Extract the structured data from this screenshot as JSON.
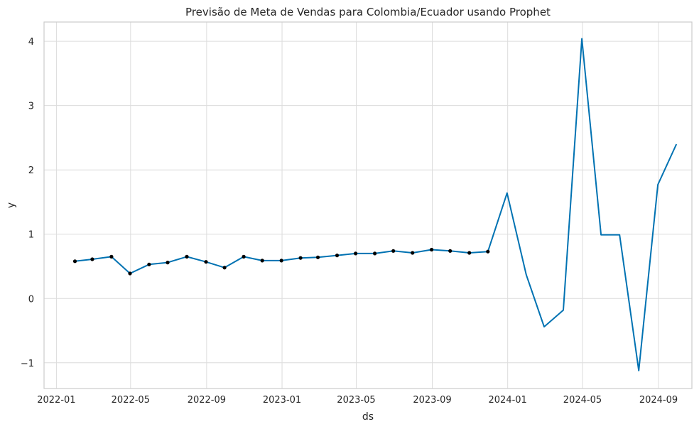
{
  "chart_data": {
    "type": "line",
    "title": "Previsão de Meta de Vendas para Colombia/Ecuador usando Prophet",
    "xlabel": "ds",
    "ylabel": "y",
    "xlim": [
      "2021-12-12",
      "2024-10-25"
    ],
    "ylim": [
      -1.4,
      4.3
    ],
    "x_ticks": [
      {
        "date": "2022-01-01",
        "label": "2022-01"
      },
      {
        "date": "2022-05-01",
        "label": "2022-05"
      },
      {
        "date": "2022-09-01",
        "label": "2022-09"
      },
      {
        "date": "2023-01-01",
        "label": "2023-01"
      },
      {
        "date": "2023-05-01",
        "label": "2023-05"
      },
      {
        "date": "2023-09-01",
        "label": "2023-09"
      },
      {
        "date": "2024-01-01",
        "label": "2024-01"
      },
      {
        "date": "2024-05-01",
        "label": "2024-05"
      },
      {
        "date": "2024-09-01",
        "label": "2024-09"
      }
    ],
    "y_ticks": [
      {
        "value": -1,
        "label": "−1"
      },
      {
        "value": 0,
        "label": "0"
      },
      {
        "value": 1,
        "label": "1"
      },
      {
        "value": 2,
        "label": "2"
      },
      {
        "value": 3,
        "label": "3"
      },
      {
        "value": 4,
        "label": "4"
      }
    ],
    "grid": true,
    "colors": {
      "forecast": "#0072b2",
      "observed": "#000000"
    },
    "series": [
      {
        "kind": "forecast",
        "x": [
          "2022-01-31",
          "2022-02-28",
          "2022-03-31",
          "2022-04-30",
          "2022-05-31",
          "2022-06-30",
          "2022-07-31",
          "2022-08-31",
          "2022-09-30",
          "2022-10-31",
          "2022-11-30",
          "2022-12-31",
          "2023-01-31",
          "2023-02-28",
          "2023-03-31",
          "2023-04-30",
          "2023-05-31",
          "2023-06-30",
          "2023-07-31",
          "2023-08-31",
          "2023-09-30",
          "2023-10-31",
          "2023-11-30",
          "2023-12-31",
          "2024-01-31",
          "2024-02-29",
          "2024-03-31",
          "2024-04-30",
          "2024-05-31",
          "2024-06-30",
          "2024-07-31",
          "2024-08-31",
          "2024-09-30"
        ],
        "y": [
          0.58,
          0.61,
          0.65,
          0.39,
          0.53,
          0.56,
          0.65,
          0.57,
          0.48,
          0.65,
          0.59,
          0.59,
          0.63,
          0.64,
          0.67,
          0.7,
          0.7,
          0.74,
          0.71,
          0.76,
          0.74,
          0.71,
          0.73,
          1.64,
          0.37,
          -0.44,
          -0.18,
          4.04,
          0.99,
          0.99,
          -1.12,
          1.77,
          2.4
        ]
      },
      {
        "kind": "observed",
        "x": [
          "2022-01-31",
          "2022-02-28",
          "2022-03-31",
          "2022-04-30",
          "2022-05-31",
          "2022-06-30",
          "2022-07-31",
          "2022-08-31",
          "2022-09-30",
          "2022-10-31",
          "2022-11-30",
          "2022-12-31",
          "2023-01-31",
          "2023-02-28",
          "2023-03-31",
          "2023-04-30",
          "2023-05-31",
          "2023-06-30",
          "2023-07-31",
          "2023-08-31",
          "2023-09-30",
          "2023-10-31",
          "2023-11-30"
        ],
        "y": [
          0.58,
          0.61,
          0.65,
          0.39,
          0.53,
          0.56,
          0.65,
          0.57,
          0.48,
          0.65,
          0.59,
          0.59,
          0.63,
          0.64,
          0.67,
          0.7,
          0.7,
          0.74,
          0.71,
          0.76,
          0.74,
          0.71,
          0.73
        ]
      }
    ]
  }
}
